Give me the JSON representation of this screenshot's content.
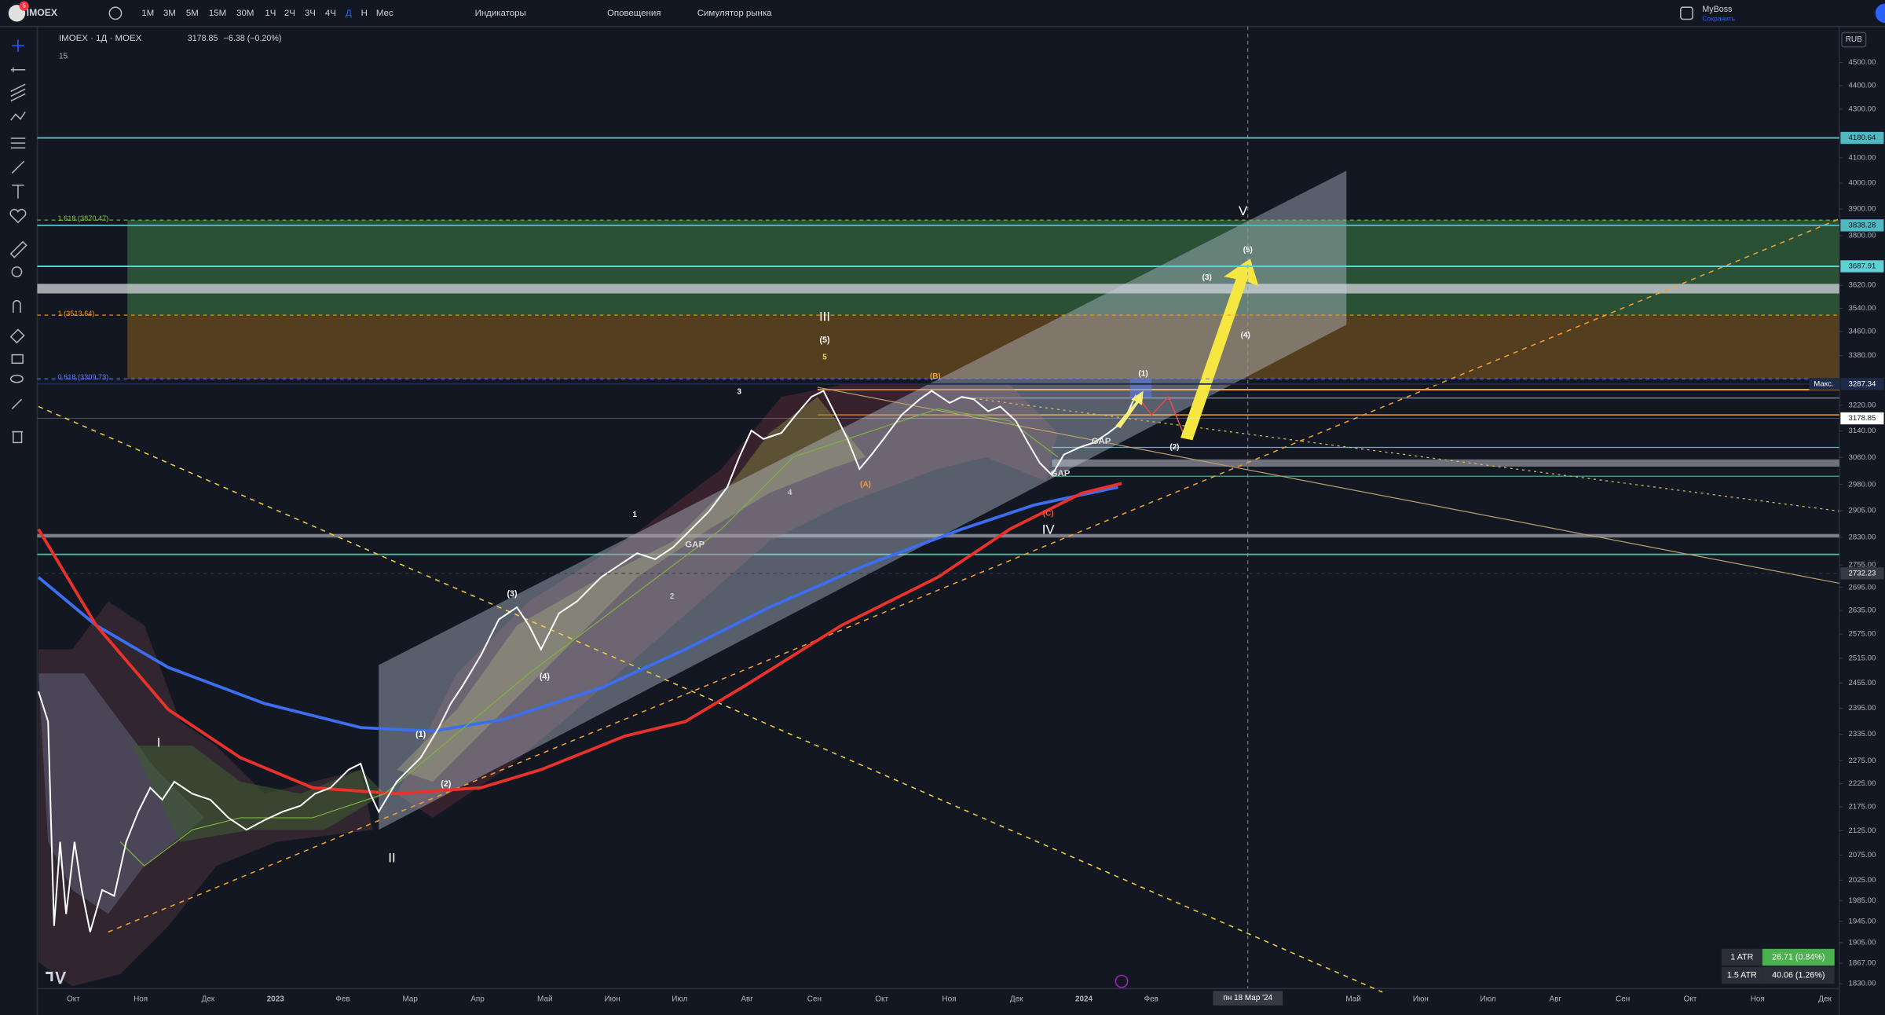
{
  "toolbar": {
    "symbol": "IMOEX",
    "intervals": [
      "1M",
      "3M",
      "5M",
      "15M",
      "30M",
      "1Ч",
      "2Ч",
      "3Ч",
      "4Ч",
      "Д",
      "Н",
      "Мес"
    ],
    "active_interval": 9,
    "indicators": "Индикаторы",
    "alerts": "Оповещения",
    "replay": "Симулятор рынка",
    "account": "MyBoss",
    "save_status": "Сохранить",
    "badge": "5"
  },
  "legend": {
    "title": "IMOEX · 1Д · MOEX",
    "last": "3178.85",
    "change": "−6.38 (−0.20%)",
    "count": "15"
  },
  "price_axis": {
    "currency": "RUB",
    "log": true,
    "ylim": [
      1830,
      4500
    ],
    "ticks": [
      {
        "value": 4500,
        "label": "4500.00"
      },
      {
        "value": 4400,
        "label": "4400.00"
      },
      {
        "value": 4300,
        "label": "4300.00"
      },
      {
        "value": 4100,
        "label": "4100.00"
      },
      {
        "value": 4000,
        "label": "4000.00"
      },
      {
        "value": 3900,
        "label": "3900.00"
      },
      {
        "value": 3800,
        "label": "3800.00"
      },
      {
        "value": 3620,
        "label": "3620.00"
      },
      {
        "value": 3540,
        "label": "3540.00"
      },
      {
        "value": 3460,
        "label": "3460.00"
      },
      {
        "value": 3380,
        "label": "3380.00"
      },
      {
        "value": 3220,
        "label": "3220.00"
      },
      {
        "value": 3140,
        "label": "3140.00"
      },
      {
        "value": 3060,
        "label": "3060.00"
      },
      {
        "value": 2980,
        "label": "2980.00"
      },
      {
        "value": 2905,
        "label": "2905.00"
      },
      {
        "value": 2830,
        "label": "2830.00"
      },
      {
        "value": 2755,
        "label": "2755.00"
      },
      {
        "value": 2695,
        "label": "2695.00"
      },
      {
        "value": 2635,
        "label": "2635.00"
      },
      {
        "value": 2575,
        "label": "2575.00"
      },
      {
        "value": 2515,
        "label": "2515.00"
      },
      {
        "value": 2455,
        "label": "2455.00"
      },
      {
        "value": 2395,
        "label": "2395.00"
      },
      {
        "value": 2335,
        "label": "2335.00"
      },
      {
        "value": 2275,
        "label": "2275.00"
      },
      {
        "value": 2225,
        "label": "2225.00"
      },
      {
        "value": 2175,
        "label": "2175.00"
      },
      {
        "value": 2125,
        "label": "2125.00"
      },
      {
        "value": 2075,
        "label": "2075.00"
      },
      {
        "value": 2025,
        "label": "2025.00"
      },
      {
        "value": 1985,
        "label": "1985.00"
      },
      {
        "value": 1945,
        "label": "1945.00"
      },
      {
        "value": 1905,
        "label": "1905.00"
      },
      {
        "value": 1867,
        "label": "1867.00"
      },
      {
        "value": 1830,
        "label": "1830.00"
      }
    ],
    "price_labels": [
      {
        "value": 4180.64,
        "color": "#4fb8c0",
        "text_color": "#131722"
      },
      {
        "value": 3838.28,
        "color": "#4fb8c0",
        "text_color": "#131722"
      },
      {
        "value": 3687.91,
        "color": "#5fd0d4",
        "text_color": "#131722"
      },
      {
        "value": 3287.34,
        "color": "#1e2a4a",
        "text_color": "#ffffff",
        "tag": "Макс."
      },
      {
        "value": 3178.85,
        "color": "#ffffff",
        "text_color": "#131722"
      },
      {
        "value": 2732.23,
        "color": "#363a45",
        "text_color": "#ffffff"
      }
    ]
  },
  "time_axis": {
    "labels": [
      "Окт",
      "Ноя",
      "Дек",
      "2023",
      "Фев",
      "Мар",
      "Апр",
      "Май",
      "Июн",
      "Июл",
      "Авг",
      "Сен",
      "Окт",
      "Ноя",
      "Дек",
      "2024",
      "Фев",
      null,
      null,
      "Май",
      "Июн",
      "Июл",
      "Авг",
      "Сен",
      "Окт",
      "Ноя",
      "Дек"
    ],
    "crosshair": "пн 18 Мар '24"
  },
  "fibonacci": [
    {
      "label": "1.618 (3870.47)",
      "color": "#8bc34a"
    },
    {
      "label": "1 (3513.64)",
      "color": "#ff9800"
    },
    {
      "label": "0.618 (3309.73)",
      "color": "#5b7fff"
    }
  ],
  "waves": [
    {
      "text": "I",
      "color": "#ffffff"
    },
    {
      "text": "II",
      "color": "#ffffff"
    },
    {
      "text": "III",
      "color": "#ffffff"
    },
    {
      "text": "IV",
      "color": "#ffffff"
    },
    {
      "text": "V",
      "color": "#ffffff"
    },
    {
      "text": "(1)",
      "color": "#ffffff"
    },
    {
      "text": "(2)",
      "color": "#ffffff"
    },
    {
      "text": "(3)",
      "color": "#ffffff"
    },
    {
      "text": "(4)",
      "color": "#ffffff"
    },
    {
      "text": "(5)",
      "color": "#ffffff"
    },
    {
      "text": "(1)",
      "color": "#ffffff"
    },
    {
      "text": "(2)",
      "color": "#ffffff"
    },
    {
      "text": "(3)",
      "color": "#ffffff"
    },
    {
      "text": "(4)",
      "color": "#ffffff"
    },
    {
      "text": "(5)",
      "color": "#ffffff"
    },
    {
      "text": "1",
      "color": "#ffffff"
    },
    {
      "text": "2",
      "color": "#cccccc"
    },
    {
      "text": "3",
      "color": "#ffffff"
    },
    {
      "text": "4",
      "color": "#cccccc"
    },
    {
      "text": "5",
      "color": "#f0d060"
    },
    {
      "text": "(A)",
      "color": "#f0a040"
    },
    {
      "text": "(B)",
      "color": "#f0a040"
    },
    {
      "text": "(C)",
      "color": "#ff5a3c"
    },
    {
      "text": "GAP",
      "color": "#dddddd"
    },
    {
      "text": "GAP",
      "color": "#dddddd"
    },
    {
      "text": "GAP",
      "color": "#dddddd"
    }
  ],
  "atr_table": [
    [
      "1 ATR",
      "26.71 (0.84%)"
    ],
    [
      "1.5 ATR",
      "40.06 (1.26%)"
    ]
  ]
}
